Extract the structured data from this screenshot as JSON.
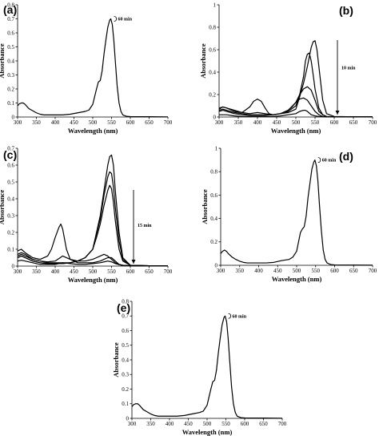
{
  "chart_data": [
    {
      "type": "line",
      "panel_label": "(a)",
      "xlabel": "Wavelength (nm)",
      "ylabel": "Absorbance",
      "xlim": [
        300,
        700
      ],
      "ylim": [
        0,
        0.8
      ],
      "xticks": [
        "300",
        "350",
        "400",
        "450",
        "500",
        "550",
        "600",
        "650",
        "700"
      ],
      "yticks": [
        "0",
        "0.1",
        "0.2",
        "0.3",
        "0.4",
        "0.5",
        "0.6",
        "0.7",
        "0.8"
      ],
      "annotation": {
        "text": "60 min",
        "x": 548,
        "y": 0.7
      },
      "series": [
        {
          "x": [
            300,
            305,
            310,
            315,
            320,
            330,
            340,
            350,
            360,
            370,
            380,
            400,
            420,
            440,
            460,
            480,
            490,
            500,
            510,
            515,
            520,
            525,
            530,
            535,
            540,
            545,
            548,
            552,
            556,
            560,
            565,
            570,
            575,
            580,
            590,
            600,
            620,
            650,
            700
          ],
          "y": [
            0.08,
            0.095,
            0.1,
            0.1,
            0.09,
            0.06,
            0.045,
            0.03,
            0.02,
            0.015,
            0.015,
            0.015,
            0.015,
            0.02,
            0.03,
            0.04,
            0.05,
            0.09,
            0.2,
            0.25,
            0.26,
            0.33,
            0.45,
            0.55,
            0.64,
            0.69,
            0.7,
            0.66,
            0.55,
            0.4,
            0.22,
            0.1,
            0.04,
            0.015,
            0.005,
            0.003,
            0.002,
            0.002,
            0.001
          ]
        }
      ]
    },
    {
      "type": "line",
      "panel_label": "(b)",
      "xlabel": "Wavelength (nm)",
      "ylabel": "Absorbance",
      "xlim": [
        300,
        700
      ],
      "ylim": [
        0,
        1
      ],
      "xticks": [
        "300",
        "350",
        "400",
        "450",
        "500",
        "550",
        "600",
        "650",
        "700"
      ],
      "yticks": [
        "0",
        "0.2",
        "0.4",
        "0.6",
        "0.8",
        "1"
      ],
      "annotation": {
        "text": "10 min",
        "x": 600,
        "y": 0.5
      },
      "series": [
        {
          "x": [
            300,
            310,
            320,
            340,
            360,
            380,
            400,
            420,
            440,
            460,
            480,
            500,
            510,
            520,
            530,
            540,
            545,
            550,
            555,
            560,
            570,
            580,
            600,
            650,
            700
          ],
          "y": [
            0.05,
            0.06,
            0.05,
            0.03,
            0.02,
            0.015,
            0.015,
            0.015,
            0.02,
            0.03,
            0.04,
            0.07,
            0.18,
            0.3,
            0.45,
            0.62,
            0.67,
            0.68,
            0.6,
            0.45,
            0.15,
            0.03,
            0.005,
            0.002,
            0.002
          ]
        },
        {
          "x": [
            300,
            310,
            320,
            340,
            360,
            380,
            400,
            420,
            440,
            460,
            480,
            500,
            510,
            520,
            525,
            530,
            535,
            540,
            545,
            550,
            560,
            570,
            580,
            600,
            650,
            700
          ],
          "y": [
            0.06,
            0.07,
            0.06,
            0.04,
            0.03,
            0.02,
            0.02,
            0.02,
            0.02,
            0.03,
            0.05,
            0.1,
            0.2,
            0.36,
            0.5,
            0.56,
            0.57,
            0.5,
            0.38,
            0.25,
            0.08,
            0.02,
            0.005,
            0.002,
            0.002,
            0.002
          ]
        },
        {
          "x": [
            300,
            310,
            320,
            340,
            360,
            380,
            400,
            420,
            440,
            460,
            480,
            500,
            510,
            520,
            530,
            540,
            550,
            560,
            570,
            580,
            600,
            650,
            700
          ],
          "y": [
            0.07,
            0.09,
            0.08,
            0.06,
            0.04,
            0.03,
            0.04,
            0.03,
            0.02,
            0.03,
            0.06,
            0.13,
            0.2,
            0.25,
            0.27,
            0.24,
            0.15,
            0.05,
            0.02,
            0.005,
            0.002,
            0.002,
            0.002
          ]
        },
        {
          "x": [
            300,
            310,
            320,
            340,
            360,
            380,
            390,
            400,
            410,
            420,
            430,
            440,
            460,
            480,
            490,
            500,
            510,
            520,
            530,
            540,
            550,
            560,
            570,
            580,
            600,
            650,
            700
          ],
          "y": [
            0.08,
            0.09,
            0.08,
            0.05,
            0.04,
            0.09,
            0.14,
            0.16,
            0.14,
            0.08,
            0.03,
            0.02,
            0.03,
            0.06,
            0.09,
            0.13,
            0.16,
            0.17,
            0.15,
            0.1,
            0.05,
            0.02,
            0.005,
            0.003,
            0.002,
            0.002,
            0.002
          ]
        },
        {
          "x": [
            300,
            320,
            340,
            360,
            380,
            400,
            420,
            440,
            460,
            480,
            500,
            510,
            520,
            525,
            530,
            540,
            550,
            560,
            570,
            580,
            600,
            650,
            700
          ],
          "y": [
            0.02,
            0.02,
            0.01,
            0.005,
            0.005,
            0.005,
            0.005,
            0.005,
            0.01,
            0.02,
            0.03,
            0.05,
            0.06,
            0.06,
            0.05,
            0.02,
            0.01,
            0.005,
            0.003,
            0.002,
            0.002,
            0.002,
            0.002
          ]
        }
      ]
    },
    {
      "type": "line",
      "panel_label": "(c)",
      "xlabel": "Wavelength (nm)",
      "ylabel": "Absorbance",
      "xlim": [
        300,
        700
      ],
      "ylim": [
        0,
        0.7
      ],
      "xticks": [
        "300",
        "350",
        "400",
        "450",
        "500",
        "550",
        "600",
        "650",
        "700"
      ],
      "yticks": [
        "0",
        "0.1",
        "0.2",
        "0.3",
        "0.4",
        "0.5",
        "0.6",
        "0.7"
      ],
      "annotation": {
        "text": "15 min",
        "x": 600,
        "y": 0.35
      },
      "series": [
        {
          "x": [
            300,
            310,
            320,
            340,
            360,
            380,
            400,
            420,
            440,
            460,
            480,
            500,
            510,
            520,
            530,
            540,
            545,
            550,
            555,
            560,
            570,
            580,
            600,
            650,
            700
          ],
          "y": [
            0.05,
            0.06,
            0.05,
            0.03,
            0.02,
            0.015,
            0.015,
            0.015,
            0.02,
            0.03,
            0.05,
            0.1,
            0.2,
            0.3,
            0.45,
            0.6,
            0.65,
            0.66,
            0.6,
            0.45,
            0.2,
            0.05,
            0.005,
            0.002,
            0.002
          ]
        },
        {
          "x": [
            300,
            310,
            320,
            340,
            360,
            380,
            400,
            420,
            440,
            460,
            480,
            500,
            510,
            520,
            530,
            540,
            545,
            550,
            555,
            560,
            570,
            580,
            600,
            650,
            700
          ],
          "y": [
            0.05,
            0.06,
            0.05,
            0.03,
            0.02,
            0.015,
            0.015,
            0.015,
            0.02,
            0.03,
            0.05,
            0.1,
            0.19,
            0.28,
            0.42,
            0.53,
            0.56,
            0.55,
            0.47,
            0.35,
            0.15,
            0.04,
            0.005,
            0.002,
            0.002
          ]
        },
        {
          "x": [
            300,
            310,
            320,
            340,
            360,
            380,
            400,
            420,
            440,
            460,
            480,
            500,
            510,
            520,
            530,
            540,
            545,
            550,
            555,
            560,
            570,
            580,
            600,
            650,
            700
          ],
          "y": [
            0.06,
            0.07,
            0.06,
            0.04,
            0.03,
            0.02,
            0.02,
            0.02,
            0.02,
            0.03,
            0.05,
            0.1,
            0.17,
            0.25,
            0.36,
            0.45,
            0.48,
            0.46,
            0.38,
            0.27,
            0.1,
            0.03,
            0.005,
            0.002,
            0.002
          ]
        },
        {
          "x": [
            300,
            310,
            320,
            340,
            360,
            380,
            390,
            400,
            410,
            415,
            420,
            430,
            440,
            460,
            480,
            500,
            510,
            520,
            530,
            540,
            550,
            560,
            570,
            580,
            600,
            650,
            700
          ],
          "y": [
            0.09,
            0.1,
            0.08,
            0.05,
            0.04,
            0.06,
            0.1,
            0.17,
            0.23,
            0.25,
            0.22,
            0.1,
            0.04,
            0.03,
            0.03,
            0.04,
            0.05,
            0.06,
            0.07,
            0.06,
            0.04,
            0.02,
            0.01,
            0.005,
            0.002,
            0.002,
            0.002
          ]
        },
        {
          "x": [
            300,
            310,
            320,
            340,
            360,
            380,
            400,
            420,
            440,
            460,
            480,
            500,
            520,
            530,
            540,
            550,
            560,
            570,
            580,
            600,
            650,
            700
          ],
          "y": [
            0.07,
            0.08,
            0.07,
            0.04,
            0.03,
            0.025,
            0.03,
            0.06,
            0.04,
            0.02,
            0.02,
            0.02,
            0.03,
            0.04,
            0.05,
            0.05,
            0.03,
            0.01,
            0.005,
            0.002,
            0.002,
            0.002
          ]
        },
        {
          "x": [
            300,
            310,
            320,
            340,
            360,
            380,
            400,
            420,
            440,
            460,
            480,
            500,
            520,
            530,
            540,
            550,
            560,
            570,
            580,
            600,
            650,
            700
          ],
          "y": [
            0.03,
            0.035,
            0.03,
            0.02,
            0.01,
            0.01,
            0.01,
            0.02,
            0.015,
            0.01,
            0.01,
            0.015,
            0.02,
            0.025,
            0.03,
            0.025,
            0.015,
            0.008,
            0.004,
            0.002,
            0.002,
            0.002
          ]
        }
      ]
    },
    {
      "type": "line",
      "panel_label": "(d)",
      "xlabel": "Wavelength (nm)",
      "ylabel": "Absorbance",
      "xlim": [
        300,
        700
      ],
      "ylim": [
        0,
        1
      ],
      "xticks": [
        "300",
        "350",
        "400",
        "450",
        "500",
        "550",
        "600",
        "650",
        "700"
      ],
      "yticks": [
        "0",
        "0.2",
        "0.4",
        "0.6",
        "0.8",
        "1"
      ],
      "annotation": {
        "text": "60 min",
        "x": 548,
        "y": 0.9
      },
      "series": [
        {
          "x": [
            300,
            305,
            310,
            315,
            320,
            330,
            340,
            350,
            360,
            370,
            380,
            400,
            420,
            440,
            460,
            480,
            490,
            500,
            510,
            515,
            520,
            525,
            530,
            535,
            540,
            545,
            548,
            552,
            556,
            560,
            565,
            570,
            575,
            580,
            590,
            600,
            620,
            650,
            700
          ],
          "y": [
            0.1,
            0.12,
            0.13,
            0.12,
            0.1,
            0.07,
            0.05,
            0.035,
            0.025,
            0.02,
            0.02,
            0.02,
            0.02,
            0.025,
            0.04,
            0.05,
            0.07,
            0.12,
            0.28,
            0.31,
            0.33,
            0.42,
            0.58,
            0.7,
            0.82,
            0.88,
            0.9,
            0.85,
            0.72,
            0.52,
            0.3,
            0.13,
            0.05,
            0.02,
            0.006,
            0.003,
            0.002,
            0.002,
            0.001
          ]
        }
      ]
    },
    {
      "type": "line",
      "panel_label": "(e)",
      "xlabel": "Wavelength (nm)",
      "ylabel": "Absorbance",
      "xlim": [
        300,
        700
      ],
      "ylim": [
        0,
        0.8
      ],
      "xticks": [
        "300",
        "350",
        "400",
        "450",
        "500",
        "550",
        "600",
        "650",
        "700"
      ],
      "yticks": [
        "0",
        "0.1",
        "0.2",
        "0.3",
        "0.4",
        "0.5",
        "0.6",
        "0.7",
        "0.8"
      ],
      "annotation": {
        "text": "60 min",
        "x": 548,
        "y": 0.7
      },
      "series": [
        {
          "x": [
            300,
            305,
            310,
            315,
            320,
            330,
            340,
            350,
            360,
            370,
            380,
            400,
            420,
            440,
            460,
            480,
            490,
            500,
            510,
            515,
            520,
            525,
            530,
            535,
            540,
            545,
            548,
            552,
            556,
            560,
            565,
            570,
            575,
            580,
            590,
            600,
            620,
            650,
            700
          ],
          "y": [
            0.08,
            0.095,
            0.1,
            0.1,
            0.09,
            0.06,
            0.045,
            0.03,
            0.02,
            0.015,
            0.015,
            0.015,
            0.015,
            0.02,
            0.03,
            0.04,
            0.05,
            0.09,
            0.2,
            0.25,
            0.26,
            0.33,
            0.45,
            0.55,
            0.64,
            0.69,
            0.7,
            0.66,
            0.55,
            0.4,
            0.22,
            0.1,
            0.04,
            0.015,
            0.005,
            0.003,
            0.002,
            0.002,
            0.001
          ]
        }
      ]
    }
  ]
}
